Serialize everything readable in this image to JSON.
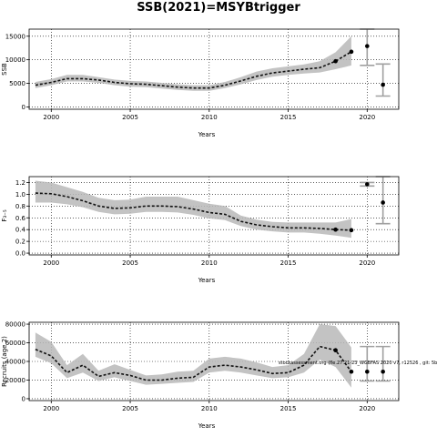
{
  "title": "SSB(2021)=MSYBtrigger",
  "annotation": "stockassessment.org (fle.27.21-23_WGBFAS 2020 v7, r12526 , git: 5b33",
  "chart_data": [
    {
      "type": "line",
      "ylabel": "SSB",
      "xlabel": "Years",
      "xlim": [
        1998.6,
        2022
      ],
      "ylim": [
        -500,
        16500
      ],
      "xticks": [
        2000,
        2005,
        2010,
        2015,
        2020
      ],
      "yticks": [
        0,
        5000,
        10000,
        15000
      ],
      "grid": "dotted",
      "series": [
        {
          "x": [
            1999,
            2000,
            2001,
            2002,
            2003,
            2004,
            2005,
            2006,
            2007,
            2008,
            2009,
            2010,
            2011,
            2012,
            2013,
            2014,
            2015,
            2016,
            2017,
            2018,
            2019
          ],
          "values": [
            4600,
            5200,
            6000,
            6000,
            5700,
            5200,
            4900,
            4800,
            4500,
            4200,
            4000,
            4000,
            4600,
            5500,
            6500,
            7200,
            7600,
            8000,
            8300,
            9700,
            11700
          ],
          "lower": [
            4000,
            4600,
            5400,
            5400,
            5100,
            4600,
            4300,
            4200,
            3900,
            3600,
            3400,
            3400,
            4000,
            4800,
            5700,
            6400,
            6800,
            7100,
            7300,
            8000,
            8800
          ],
          "upper": [
            5300,
            5900,
            6800,
            6800,
            6300,
            5800,
            5500,
            5400,
            5100,
            4800,
            4600,
            4600,
            5300,
            6300,
            7500,
            8200,
            8600,
            9000,
            9700,
            11600,
            15000
          ]
        }
      ],
      "points": [
        {
          "x": 2018,
          "y": 9700
        },
        {
          "x": 2019,
          "y": 11700
        },
        {
          "x": 2020,
          "y": 12900,
          "lower": 8800,
          "upper": 16600
        },
        {
          "x": 2021,
          "y": 4700,
          "lower": 2300,
          "upper": 9100
        }
      ]
    },
    {
      "type": "line",
      "ylabel": "F₃₋₅",
      "xlabel": "Years",
      "xlim": [
        1998.6,
        2022
      ],
      "ylim": [
        -0.03,
        1.3
      ],
      "xticks": [
        2000,
        2005,
        2010,
        2015,
        2020
      ],
      "yticks": [
        0.0,
        0.2,
        0.4,
        0.6,
        0.8,
        1.0,
        1.2
      ],
      "ytick_labels": [
        "0.0",
        "0.2",
        "0.4",
        "0.6",
        "0.8",
        "1.0",
        "1.2"
      ],
      "grid": "dotted",
      "series": [
        {
          "x": [
            1999,
            2000,
            2001,
            2002,
            2003,
            2004,
            2005,
            2006,
            2007,
            2008,
            2009,
            2010,
            2011,
            2012,
            2013,
            2014,
            2015,
            2016,
            2017,
            2018,
            2019
          ],
          "values": [
            1.02,
            1.01,
            0.96,
            0.89,
            0.8,
            0.76,
            0.77,
            0.8,
            0.8,
            0.79,
            0.75,
            0.69,
            0.66,
            0.54,
            0.48,
            0.45,
            0.43,
            0.43,
            0.42,
            0.4,
            0.39
          ],
          "lower": [
            0.86,
            0.86,
            0.83,
            0.78,
            0.7,
            0.66,
            0.67,
            0.7,
            0.7,
            0.69,
            0.65,
            0.59,
            0.56,
            0.46,
            0.4,
            0.37,
            0.35,
            0.35,
            0.33,
            0.3,
            0.26
          ],
          "upper": [
            1.23,
            1.2,
            1.12,
            1.04,
            0.94,
            0.9,
            0.91,
            0.96,
            0.96,
            0.96,
            0.9,
            0.84,
            0.8,
            0.64,
            0.57,
            0.53,
            0.52,
            0.52,
            0.52,
            0.52,
            0.58
          ]
        }
      ],
      "points": [
        {
          "x": 2018,
          "y": 0.4
        },
        {
          "x": 2019,
          "y": 0.39
        },
        {
          "x": 2020,
          "y": 1.17,
          "lower": 1.14,
          "upper": 1.2
        },
        {
          "x": 2021,
          "y": 0.86,
          "lower": 0.5,
          "upper": 1.3
        }
      ]
    },
    {
      "type": "line",
      "ylabel": "Recruits (age 2)",
      "xlabel": "Years",
      "xlim": [
        1998.6,
        2022
      ],
      "ylim": [
        -2000,
        82000
      ],
      "xticks": [
        2000,
        2005,
        2010,
        2015,
        2020
      ],
      "yticks": [
        0,
        20000,
        40000,
        60000,
        80000
      ],
      "grid": "dotted",
      "series": [
        {
          "x": [
            1999,
            2000,
            2001,
            2002,
            2003,
            2004,
            2005,
            2006,
            2007,
            2008,
            2009,
            2010,
            2011,
            2012,
            2013,
            2014,
            2015,
            2016,
            2017,
            2018,
            2019
          ],
          "values": [
            53000,
            46000,
            28000,
            36000,
            24000,
            28000,
            25000,
            20000,
            20000,
            22000,
            23000,
            34000,
            36000,
            34000,
            31000,
            27000,
            28000,
            36000,
            56000,
            52000,
            29000
          ],
          "lower": [
            45000,
            38000,
            22000,
            28000,
            19000,
            23000,
            19000,
            15000,
            16000,
            17000,
            18000,
            28000,
            30000,
            28000,
            25000,
            22000,
            23000,
            28000,
            42000,
            34000,
            12000
          ],
          "upper": [
            71000,
            61000,
            36000,
            48000,
            30000,
            37000,
            31000,
            25000,
            26000,
            29000,
            30000,
            43000,
            45000,
            43000,
            39000,
            34000,
            36000,
            48000,
            80000,
            78000,
            55000
          ]
        }
      ],
      "points": [
        {
          "x": 2018,
          "y": 52000
        },
        {
          "x": 2019,
          "y": 29000
        },
        {
          "x": 2020,
          "y": 29000,
          "lower": 19000,
          "upper": 56000
        },
        {
          "x": 2021,
          "y": 29000,
          "lower": 19000,
          "upper": 56000
        }
      ]
    }
  ]
}
